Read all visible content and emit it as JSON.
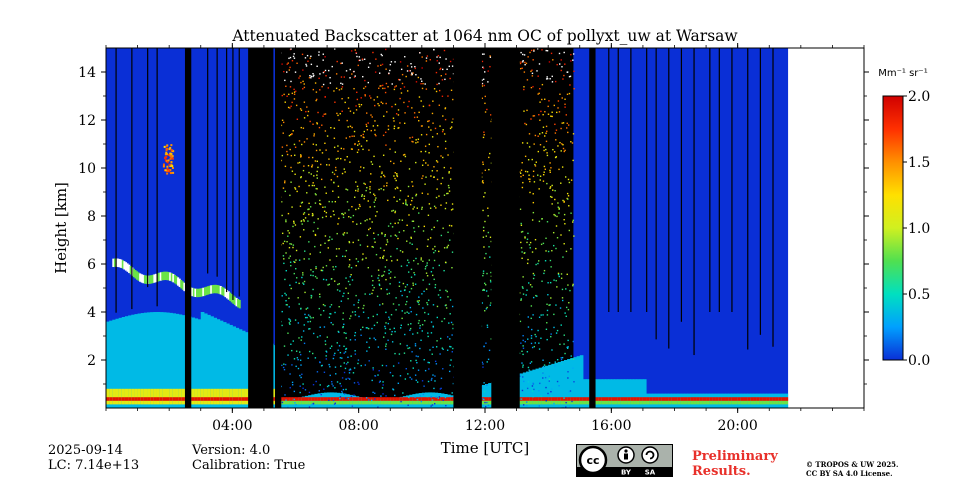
{
  "chart_data": {
    "type": "heatmap",
    "title": "Attenuated Backscatter at 1064 nm OC of pollyxt_uw at Warsaw",
    "xlabel": "Time [UTC]",
    "ylabel": "Height [km]",
    "xlim": [
      0,
      24
    ],
    "ylim": [
      0,
      15
    ],
    "x_ticks": [
      {
        "value": 4,
        "label": "04:00"
      },
      {
        "value": 8,
        "label": "08:00"
      },
      {
        "value": 12,
        "label": "12:00"
      },
      {
        "value": 16,
        "label": "16:00"
      },
      {
        "value": 20,
        "label": "20:00"
      }
    ],
    "y_ticks": [
      {
        "value": 2,
        "label": "2"
      },
      {
        "value": 4,
        "label": "4"
      },
      {
        "value": 6,
        "label": "6"
      },
      {
        "value": 8,
        "label": "8"
      },
      {
        "value": 10,
        "label": "10"
      },
      {
        "value": 12,
        "label": "12"
      },
      {
        "value": 14,
        "label": "14"
      }
    ],
    "data_end_hour": 21.6,
    "black_gaps_hours": [
      [
        2.5,
        2.7
      ],
      [
        4.5,
        5.3
      ],
      [
        5.35,
        5.55
      ],
      [
        11.0,
        11.9
      ],
      [
        12.2,
        13.1
      ],
      [
        15.3,
        15.5
      ]
    ],
    "colorbar": {
      "unit_label": "Mm⁻¹ sr⁻¹",
      "range": [
        0.0,
        2.0
      ],
      "ticks": [
        {
          "value": 0.0,
          "label": "0.0"
        },
        {
          "value": 0.5,
          "label": "0.5"
        },
        {
          "value": 1.0,
          "label": "1.0"
        },
        {
          "value": 1.5,
          "label": "1.5"
        },
        {
          "value": 2.0,
          "label": "2.0"
        }
      ],
      "colors": [
        "#0a2fd6",
        "#00a0ff",
        "#00e0c0",
        "#50e050",
        "#d0f020",
        "#ffe000",
        "#ff9000",
        "#ff3000",
        "#d00000"
      ]
    }
  },
  "footer": {
    "date": "2025-09-14",
    "lc": "LC: 7.14e+13",
    "version": "Version: 4.0",
    "calibration": "Calibration: True",
    "preliminary_line1": "Preliminary",
    "preliminary_line2": "Results.",
    "preliminary_color": "#e8302a",
    "copyright_line1": "© TROPOS & UW 2025.",
    "copyright_line2": "CC BY SA 4.0 License.",
    "cc_badge": {
      "by": "BY",
      "sa": "SA"
    }
  }
}
